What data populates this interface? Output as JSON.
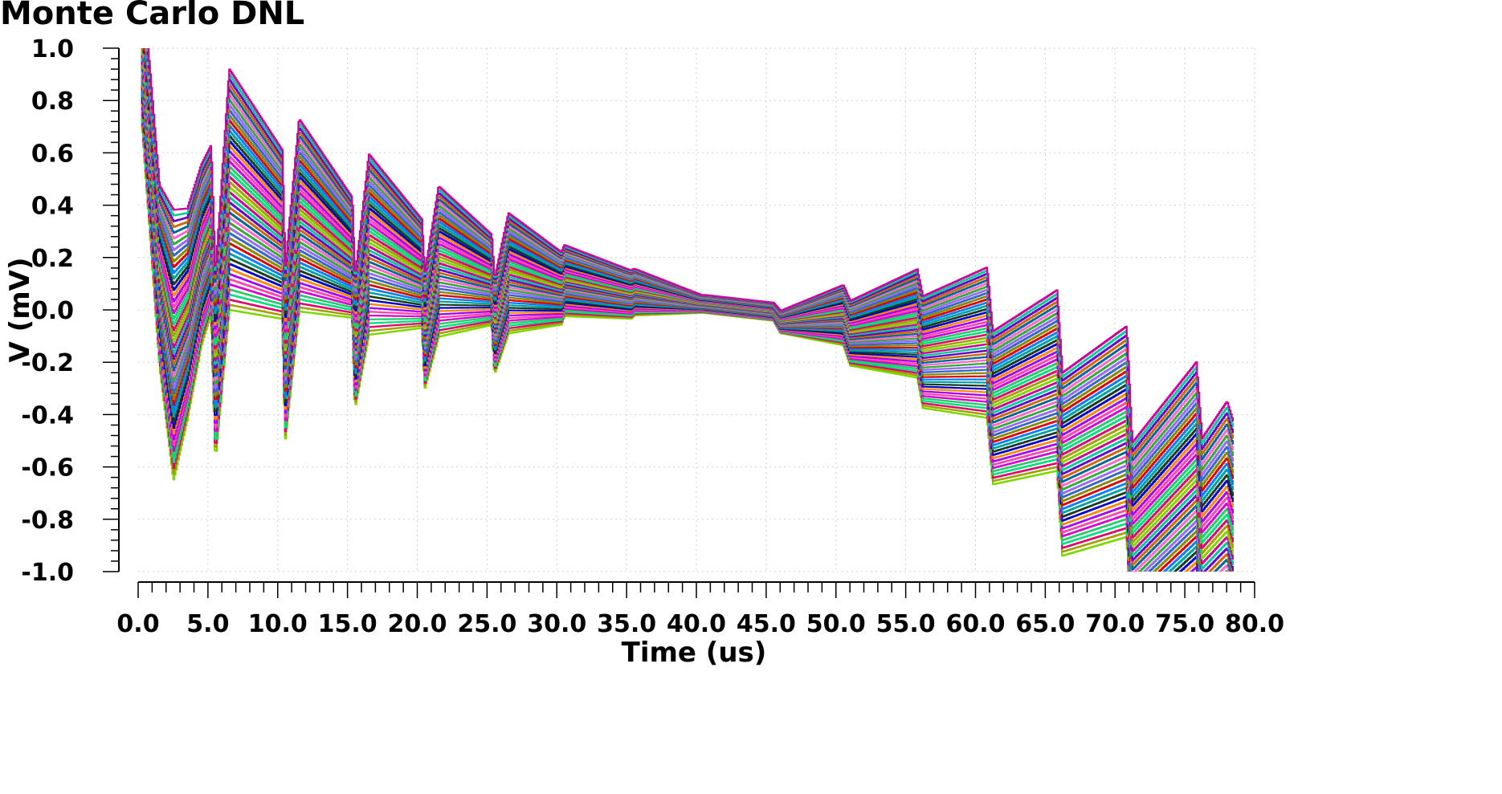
{
  "chart_data": {
    "type": "line",
    "title": "Monte Carlo DNL",
    "xlabel": "Time (us)",
    "ylabel": "V (mV)",
    "xlim": [
      0,
      80
    ],
    "ylim": [
      -1.0,
      1.0
    ],
    "x_ticks": [
      "0.0",
      "5.0",
      "10.0",
      "15.0",
      "20.0",
      "25.0",
      "30.0",
      "35.0",
      "40.0",
      "45.0",
      "50.0",
      "55.0",
      "60.0",
      "65.0",
      "70.0",
      "75.0",
      "80.0"
    ],
    "y_ticks": [
      "1.0",
      "0.8",
      "0.6",
      "0.4",
      "0.2",
      "0.0",
      "-0.2",
      "-0.4",
      "-0.6",
      "-0.8",
      "-1.0"
    ],
    "grid": true,
    "n_runs": 48,
    "run_factor_range": [
      -1.05,
      1.25
    ],
    "nominal_pattern": {
      "x": [
        0.2,
        1.5,
        2.5,
        3.5,
        4.5,
        5.2,
        5.5,
        6.5,
        10.3,
        10.5,
        11.5,
        15.3,
        15.5,
        16.5,
        20.3,
        20.5,
        21.5,
        25.3,
        25.5,
        26.5,
        30.3,
        30.5,
        35.3,
        35.5,
        40.3,
        40.5,
        45.5,
        46,
        50.5,
        51,
        55.8,
        56.2,
        60.8,
        61.2,
        65.8,
        66.2,
        70.8,
        71.2,
        75.8,
        76.2,
        78,
        78.5
      ],
      "y": [
        1.0,
        0.1,
        -0.18,
        -0.05,
        0.18,
        0.28,
        -0.25,
        0.42,
        0.26,
        -0.2,
        0.33,
        0.18,
        -0.15,
        0.22,
        0.12,
        -0.1,
        0.16,
        0.1,
        -0.08,
        0.12,
        0.07,
        0.1,
        0.05,
        0.06,
        0.02,
        0.02,
        -0.01,
        -0.05,
        -0.03,
        -0.1,
        -0.07,
        -0.18,
        -0.15,
        -0.4,
        -0.3,
        -0.62,
        -0.5,
        -0.95,
        -0.7,
        -1.0,
        -0.9,
        -1.0
      ]
    },
    "spread_pattern": {
      "x": [
        0.2,
        1.5,
        2.5,
        3.5,
        4.5,
        5.2,
        6.5,
        10.3,
        11.5,
        15.3,
        16.5,
        20.3,
        21.5,
        25.3,
        26.5,
        30.3,
        35.3,
        40.3,
        45.5,
        50.5,
        55.8,
        60.8,
        65.8,
        70.8,
        75.8,
        78.5
      ],
      "y": [
        0.25,
        0.3,
        0.45,
        0.35,
        0.3,
        0.28,
        0.4,
        0.28,
        0.32,
        0.2,
        0.3,
        0.18,
        0.25,
        0.15,
        0.2,
        0.12,
        0.08,
        0.03,
        0.03,
        0.1,
        0.18,
        0.25,
        0.3,
        0.35,
        0.4,
        0.45
      ]
    },
    "series_colors": [
      "#7cd700",
      "#a0a000",
      "#e0006e",
      "#00e07a",
      "#22cc66",
      "#d400d4",
      "#ff44aa",
      "#a000ff",
      "#ff8800",
      "#0000cc",
      "#1a3a1a",
      "#00a0a0",
      "#0080ff",
      "#dd0000",
      "#888800",
      "#3366cc",
      "#9966ff",
      "#33aa33",
      "#ff66cc",
      "#006699",
      "#cc6600",
      "#6600cc",
      "#00cc99",
      "#cc0099"
    ]
  }
}
